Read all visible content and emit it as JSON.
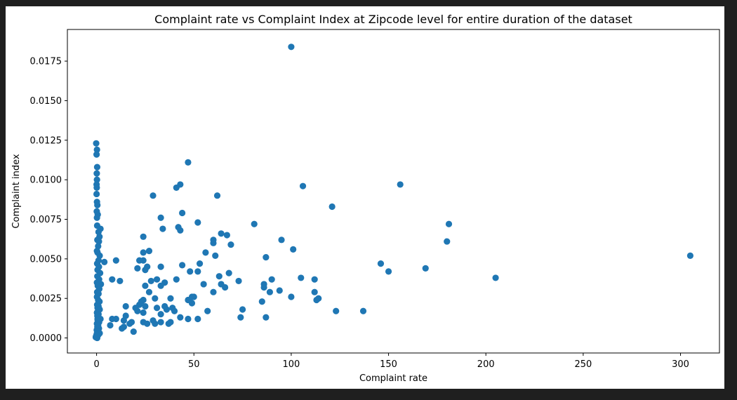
{
  "colors": {
    "window_bg": "#1f1f1f",
    "figure_bg": "#ffffff",
    "marker": "#1f77b4",
    "axis": "#000000"
  },
  "chart_data": {
    "type": "scatter",
    "title": "Complaint rate vs Complaint Index at Zipcode level for entire duration of the dataset",
    "xlabel": "Complaint rate",
    "ylabel": "Complaint index",
    "xlim": [
      -15,
      320
    ],
    "ylim": [
      -0.00095,
      0.0195
    ],
    "xticks": [
      0,
      50,
      100,
      150,
      200,
      250,
      300
    ],
    "xtick_labels": [
      "0",
      "50",
      "100",
      "150",
      "200",
      "250",
      "300"
    ],
    "yticks": [
      0.0,
      0.0025,
      0.005,
      0.0075,
      0.01,
      0.0125,
      0.015,
      0.0175
    ],
    "ytick_labels": [
      "0.0000",
      "0.0025",
      "0.0050",
      "0.0075",
      "0.0100",
      "0.0125",
      "0.0150",
      "0.0175"
    ],
    "grid": false,
    "legend": "none",
    "series": [
      {
        "points": [
          [
            -0.2,
            0.0123
          ],
          [
            0.2,
            0.0119
          ],
          [
            0,
            0.0116
          ],
          [
            0.3,
            0.0108
          ],
          [
            0.1,
            0.0104
          ],
          [
            0.2,
            0.01
          ],
          [
            0,
            0.0097
          ],
          [
            0.1,
            0.0095
          ],
          [
            0,
            0.0091
          ],
          [
            0.2,
            0.0086
          ],
          [
            0.4,
            0.0084
          ],
          [
            0.1,
            0.008
          ],
          [
            0.6,
            0.0078
          ],
          [
            0.2,
            0.0076
          ],
          [
            0.3,
            0.0071
          ],
          [
            2.0,
            0.0069
          ],
          [
            1.0,
            0.0067
          ],
          [
            1.5,
            0.0064
          ],
          [
            0.4,
            0.0062
          ],
          [
            1.2,
            0.0061
          ],
          [
            0.8,
            0.0058
          ],
          [
            0.2,
            0.0055
          ],
          [
            0.5,
            0.0054
          ],
          [
            1.6,
            0.0052
          ],
          [
            1.0,
            0.0049
          ],
          [
            4.0,
            0.0048
          ],
          [
            0.3,
            0.0047
          ],
          [
            1.2,
            0.0045
          ],
          [
            0.5,
            0.0043
          ],
          [
            1.8,
            0.0041
          ],
          [
            0.4,
            0.0039
          ],
          [
            1.3,
            0.0037
          ],
          [
            0.2,
            0.0035
          ],
          [
            2.2,
            0.0034
          ],
          [
            0.6,
            0.0033
          ],
          [
            1.4,
            0.0031
          ],
          [
            0.3,
            0.0029
          ],
          [
            1.0,
            0.0028
          ],
          [
            0.2,
            0.0026
          ],
          [
            0.8,
            0.0024
          ],
          [
            1.5,
            0.0023
          ],
          [
            0.3,
            0.0021
          ],
          [
            1.0,
            0.002
          ],
          [
            0.5,
            0.0019
          ],
          [
            1.6,
            0.0018
          ],
          [
            0.2,
            0.0016
          ],
          [
            1.0,
            0.0015
          ],
          [
            0.4,
            0.0014
          ],
          [
            2.0,
            0.0012
          ],
          [
            0.6,
            0.0011
          ],
          [
            1.3,
            0.001
          ],
          [
            0.2,
            0.0009
          ],
          [
            0.8,
            0.0008
          ],
          [
            0.4,
            0.0007
          ],
          [
            1.2,
            0.0006
          ],
          [
            0.1,
            0.0005
          ],
          [
            0.6,
            0.0004
          ],
          [
            0.2,
            0.0003
          ],
          [
            0.9,
            0.0002
          ],
          [
            -0.3,
            0.0001
          ],
          [
            0.3,
            0.0
          ],
          [
            1.6,
            0.0003
          ],
          [
            -0.4,
            5e-05
          ],
          [
            0.5,
            0.0012
          ],
          [
            0.0,
            0.0002
          ],
          [
            100,
            0.0184
          ],
          [
            29,
            0.009
          ],
          [
            43,
            0.0097
          ],
          [
            41,
            0.0095
          ],
          [
            47,
            0.0111
          ],
          [
            62,
            0.009
          ],
          [
            106,
            0.0096
          ],
          [
            121,
            0.0083
          ],
          [
            156,
            0.0097
          ],
          [
            181,
            0.0072
          ],
          [
            180,
            0.0061
          ],
          [
            305,
            0.0052
          ],
          [
            205,
            0.0038
          ],
          [
            169,
            0.0044
          ],
          [
            150,
            0.0042
          ],
          [
            146,
            0.0047
          ],
          [
            137,
            0.0017
          ],
          [
            123,
            0.0017
          ],
          [
            114,
            0.0025
          ],
          [
            112,
            0.0037
          ],
          [
            112,
            0.0029
          ],
          [
            113,
            0.0024
          ],
          [
            105,
            0.0038
          ],
          [
            101,
            0.0056
          ],
          [
            100,
            0.0026
          ],
          [
            95,
            0.0062
          ],
          [
            94,
            0.003
          ],
          [
            90,
            0.0037
          ],
          [
            89,
            0.0029
          ],
          [
            87,
            0.0051
          ],
          [
            86,
            0.0034
          ],
          [
            86,
            0.0032
          ],
          [
            85,
            0.0023
          ],
          [
            87,
            0.0013
          ],
          [
            81,
            0.0072
          ],
          [
            75,
            0.0018
          ],
          [
            74,
            0.0013
          ],
          [
            73,
            0.0036
          ],
          [
            69,
            0.0059
          ],
          [
            68,
            0.0041
          ],
          [
            67,
            0.0065
          ],
          [
            66,
            0.0032
          ],
          [
            64,
            0.0066
          ],
          [
            64,
            0.0034
          ],
          [
            63,
            0.0039
          ],
          [
            61,
            0.0052
          ],
          [
            60,
            0.0062
          ],
          [
            60,
            0.006
          ],
          [
            60,
            0.0029
          ],
          [
            57,
            0.0017
          ],
          [
            56,
            0.0054
          ],
          [
            55,
            0.0034
          ],
          [
            53,
            0.0047
          ],
          [
            52,
            0.0042
          ],
          [
            52,
            0.0073
          ],
          [
            52,
            0.0012
          ],
          [
            50,
            0.0026
          ],
          [
            49,
            0.0026
          ],
          [
            49,
            0.0022
          ],
          [
            48,
            0.0042
          ],
          [
            47,
            0.0024
          ],
          [
            47,
            0.0012
          ],
          [
            44,
            0.0079
          ],
          [
            44,
            0.0046
          ],
          [
            43,
            0.0068
          ],
          [
            42,
            0.007
          ],
          [
            43,
            0.0013
          ],
          [
            40,
            0.0017
          ],
          [
            41,
            0.0037
          ],
          [
            39,
            0.0019
          ],
          [
            38,
            0.0025
          ],
          [
            38,
            0.001
          ],
          [
            37,
            0.0009
          ],
          [
            36,
            0.0018
          ],
          [
            35,
            0.002
          ],
          [
            35,
            0.0035
          ],
          [
            34,
            0.0069
          ],
          [
            33,
            0.0076
          ],
          [
            33,
            0.0045
          ],
          [
            33,
            0.0033
          ],
          [
            33,
            0.0015
          ],
          [
            33,
            0.001
          ],
          [
            31,
            0.0037
          ],
          [
            30,
            0.0025
          ],
          [
            31,
            0.0019
          ],
          [
            30,
            0.0009
          ],
          [
            29,
            0.0011
          ],
          [
            28,
            0.0036
          ],
          [
            27,
            0.0029
          ],
          [
            27,
            0.0055
          ],
          [
            26,
            0.0045
          ],
          [
            25,
            0.0043
          ],
          [
            25,
            0.0033
          ],
          [
            25,
            0.002
          ],
          [
            24,
            0.0064
          ],
          [
            24,
            0.0054
          ],
          [
            24,
            0.0049
          ],
          [
            24,
            0.0024
          ],
          [
            24,
            0.0016
          ],
          [
            24,
            0.001
          ],
          [
            26,
            0.0009
          ],
          [
            23,
            0.0023
          ],
          [
            22,
            0.0049
          ],
          [
            22,
            0.0021
          ],
          [
            21,
            0.0044
          ],
          [
            21,
            0.0017
          ],
          [
            20,
            0.0019
          ],
          [
            19,
            0.0004
          ],
          [
            18,
            0.001
          ],
          [
            17,
            0.0009
          ],
          [
            15,
            0.0014
          ],
          [
            14,
            0.0011
          ],
          [
            14,
            0.0007
          ],
          [
            15,
            0.002
          ],
          [
            13,
            0.0006
          ],
          [
            12,
            0.0036
          ],
          [
            10,
            0.0049
          ],
          [
            10,
            0.0012
          ],
          [
            8,
            0.0037
          ],
          [
            8,
            0.0012
          ],
          [
            7,
            0.0008
          ]
        ]
      }
    ]
  }
}
